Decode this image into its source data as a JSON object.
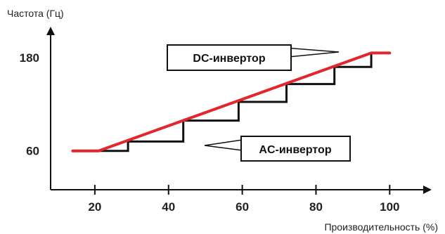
{
  "chart_data": {
    "type": "line",
    "ylabel": "Частота (Гц)",
    "xlabel": "Производительность (%)",
    "x_ticks": [
      {
        "value": 20,
        "label": "20"
      },
      {
        "value": 40,
        "label": "40"
      },
      {
        "value": 60,
        "label": "60"
      },
      {
        "value": 80,
        "label": "80"
      },
      {
        "value": 100,
        "label": "100"
      }
    ],
    "y_ticks": [
      {
        "value": 60,
        "label": "60"
      },
      {
        "value": 180,
        "label": "180"
      }
    ],
    "xlim": [
      8,
      111
    ],
    "ylim": [
      10,
      218
    ],
    "series": [
      {
        "name": "DC-инвертор",
        "color": "#e3262c",
        "shape": "line",
        "x": [
          14,
          21,
          95,
          100
        ],
        "y": [
          60,
          60,
          186,
          186
        ]
      },
      {
        "name": "AC-инвертор",
        "color": "#111111",
        "shape": "step",
        "x": [
          21,
          29,
          29,
          44,
          44,
          59,
          59,
          72,
          72,
          85,
          85,
          95,
          95
        ],
        "y": [
          60,
          60,
          72,
          72,
          99,
          99,
          123,
          123,
          146,
          146,
          168,
          168,
          186
        ]
      }
    ],
    "annotations": [
      {
        "text": "DC-инвертор",
        "series": "DC-инвертор"
      },
      {
        "text": "AC-инвертор",
        "series": "AC-инвертор"
      }
    ]
  }
}
